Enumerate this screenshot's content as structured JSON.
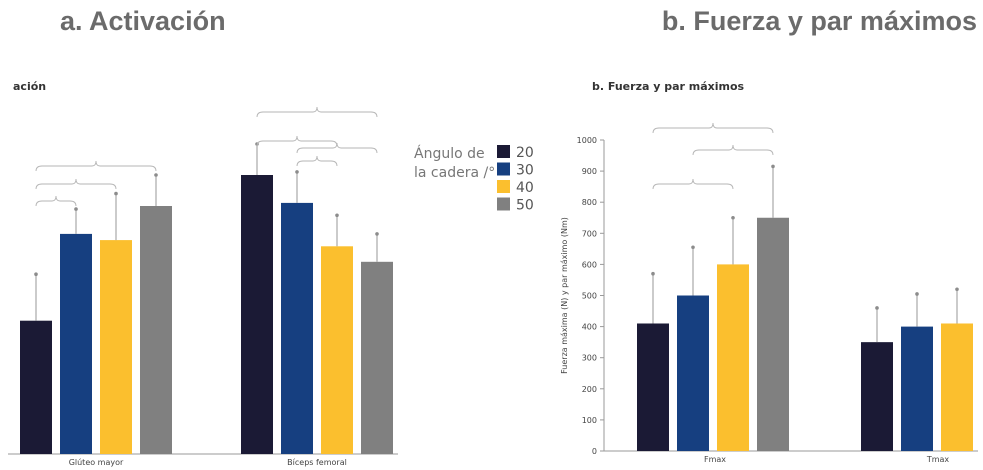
{
  "headings": {
    "panel_a": "a.   Activación",
    "panel_b": "b. Fuerza y par máximos",
    "panel_a_small": "ación",
    "panel_b_small": "b. Fuerza y par máximos"
  },
  "legend": {
    "title_line1": "Ángulo de",
    "title_line2": "la cadera /°",
    "items": [
      "20",
      "30",
      "40",
      "50"
    ]
  },
  "colors": {
    "20": "#1b1a35",
    "30": "#163f80",
    "40": "#fbbf2e",
    "50": "#808080"
  },
  "chart_data": [
    {
      "type": "bar",
      "title": "Activación",
      "categories": [
        "Glúteo mayor",
        "Bíceps femoral"
      ],
      "series": [
        {
          "name": "20",
          "values": [
            43,
            90
          ]
        },
        {
          "name": "30",
          "values": [
            71,
            81
          ]
        },
        {
          "name": "40",
          "values": [
            69,
            67
          ]
        },
        {
          "name": "50",
          "values": [
            80,
            62
          ]
        }
      ],
      "errors": [
        {
          "name": "20",
          "values": [
            15,
            10
          ]
        },
        {
          "name": "30",
          "values": [
            8,
            10
          ]
        },
        {
          "name": "40",
          "values": [
            15,
            10
          ]
        },
        {
          "name": "50",
          "values": [
            10,
            9
          ]
        }
      ],
      "ylim": [
        0,
        100
      ],
      "y_axis_visible": false,
      "significance_brackets": [
        {
          "category": "Glúteo mayor",
          "from": "20",
          "to": "30"
        },
        {
          "category": "Glúteo mayor",
          "from": "20",
          "to": "40"
        },
        {
          "category": "Glúteo mayor",
          "from": "20",
          "to": "50"
        },
        {
          "category": "Bíceps femoral",
          "from": "20",
          "to": "40"
        },
        {
          "category": "Bíceps femoral",
          "from": "20",
          "to": "50"
        },
        {
          "category": "Bíceps femoral",
          "from": "30",
          "to": "40"
        },
        {
          "category": "Bíceps femoral",
          "from": "30",
          "to": "50"
        }
      ]
    },
    {
      "type": "bar",
      "title": "b. Fuerza y par máximos",
      "ylabel": "Fuerza máxima (N) y par máximo (Nm)",
      "categories": [
        "Fmax",
        "Tmax"
      ],
      "series": [
        {
          "name": "20",
          "values": [
            410,
            350
          ]
        },
        {
          "name": "30",
          "values": [
            500,
            400
          ]
        },
        {
          "name": "40",
          "values": [
            600,
            410
          ]
        },
        {
          "name": "50",
          "values": [
            750,
            null
          ]
        }
      ],
      "errors": [
        {
          "name": "20",
          "values": [
            160,
            110
          ]
        },
        {
          "name": "30",
          "values": [
            155,
            105
          ]
        },
        {
          "name": "40",
          "values": [
            150,
            110
          ]
        },
        {
          "name": "50",
          "values": [
            165,
            null
          ]
        }
      ],
      "ylim": [
        0,
        1000
      ],
      "yticks": [
        0,
        100,
        200,
        300,
        400,
        500,
        600,
        700,
        800,
        900,
        1000
      ],
      "significance_brackets": [
        {
          "category": "Fmax",
          "from": "20",
          "to": "40"
        },
        {
          "category": "Fmax",
          "from": "20",
          "to": "50"
        },
        {
          "category": "Fmax",
          "from": "30",
          "to": "50"
        }
      ]
    }
  ]
}
